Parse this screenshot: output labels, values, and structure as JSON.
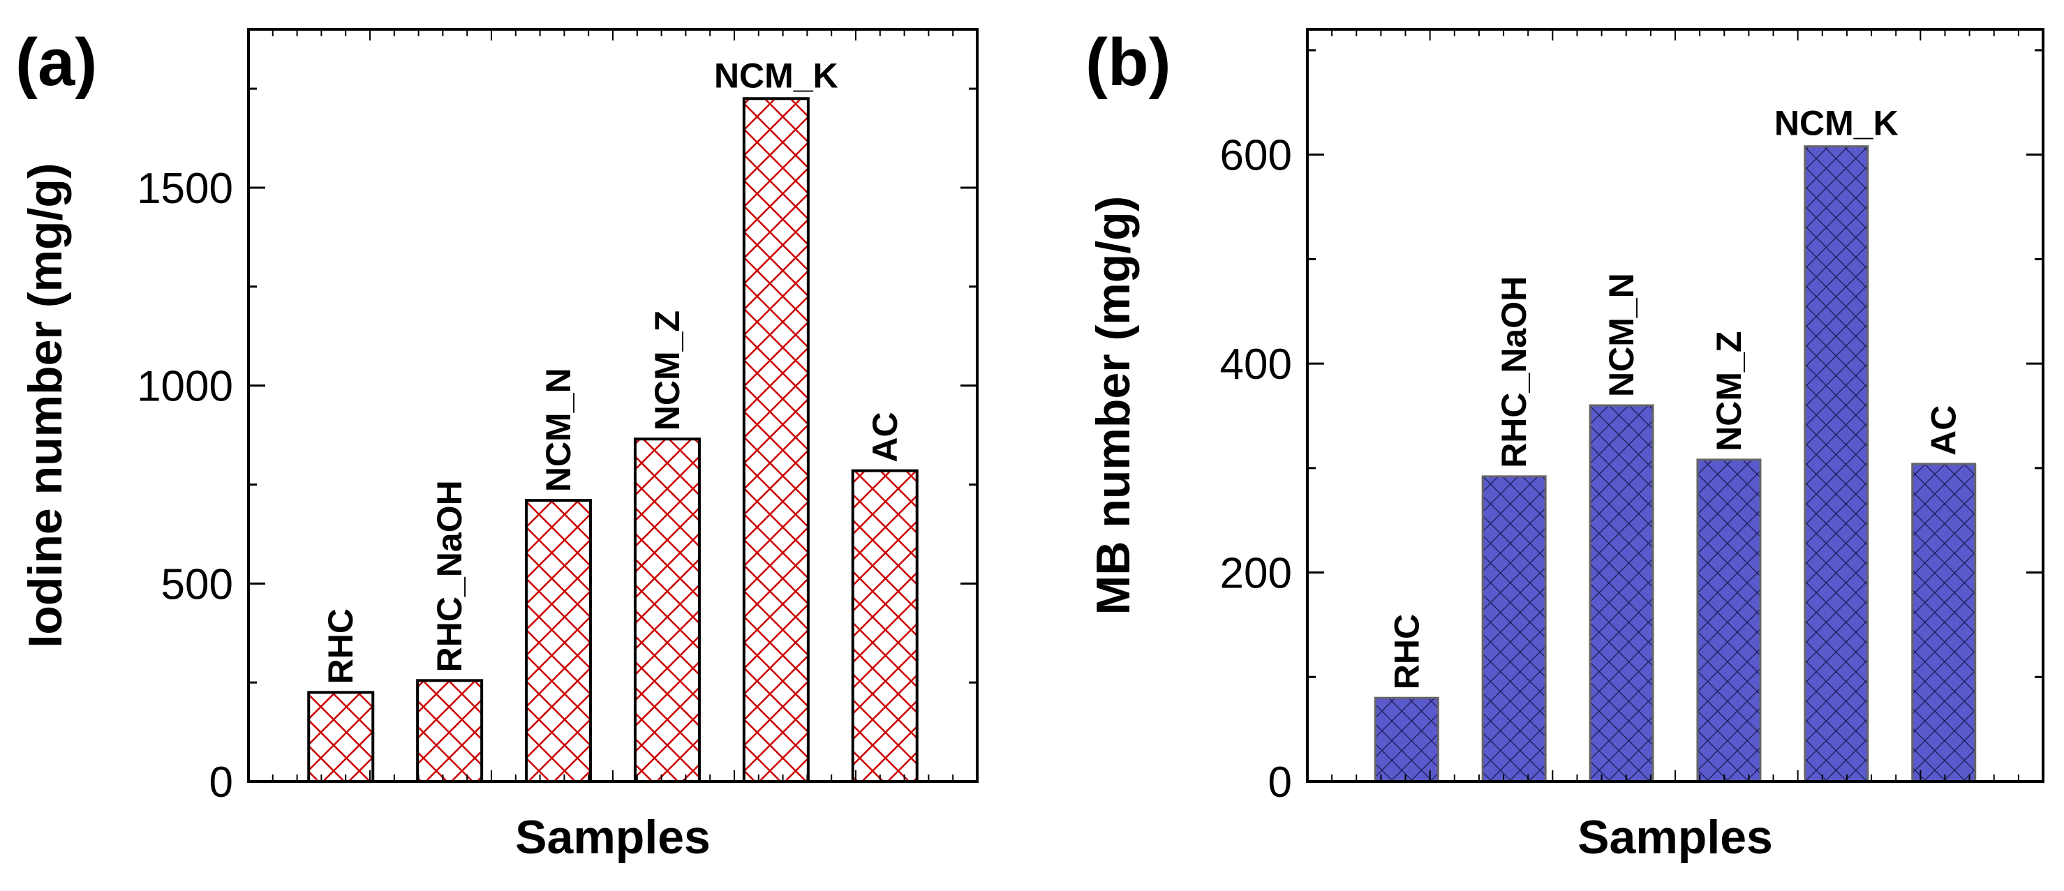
{
  "chart_data": [
    {
      "type": "bar",
      "panel_label": "(a)",
      "xlabel": "Samples",
      "ylabel": "Iodine number (mg/g)",
      "ylim": [
        0,
        1900
      ],
      "yticks": [
        0,
        500,
        1000,
        1500
      ],
      "categories": [
        "RHC",
        "RHC_NaOH",
        "NCM_N",
        "NCM_Z",
        "NCM_K",
        "AC"
      ],
      "values": [
        225,
        255,
        710,
        865,
        1725,
        785
      ],
      "bar_label_rotation": [
        -90,
        -90,
        -90,
        -90,
        0,
        -90
      ],
      "bar_fill": "#ffffff",
      "hatch_color": "#cc0000",
      "hatch": "crosshatch",
      "grid": false,
      "legend": "none"
    },
    {
      "type": "bar",
      "panel_label": "(b)",
      "xlabel": "Samples",
      "ylabel": "MB number (mg/g)",
      "ylim": [
        0,
        720
      ],
      "yticks": [
        0,
        200,
        400,
        600
      ],
      "categories": [
        "RHC",
        "RHC_NaOH",
        "NCM_N",
        "NCM_Z",
        "NCM_K",
        "AC"
      ],
      "values": [
        80,
        292,
        360,
        308,
        608,
        304
      ],
      "bar_label_rotation": [
        -90,
        -90,
        -90,
        -90,
        0,
        -90
      ],
      "bar_fill": "#5a5acc",
      "hatch_color": "#1a1a55",
      "hatch": "crosshatch",
      "grid": false,
      "legend": "none"
    }
  ]
}
